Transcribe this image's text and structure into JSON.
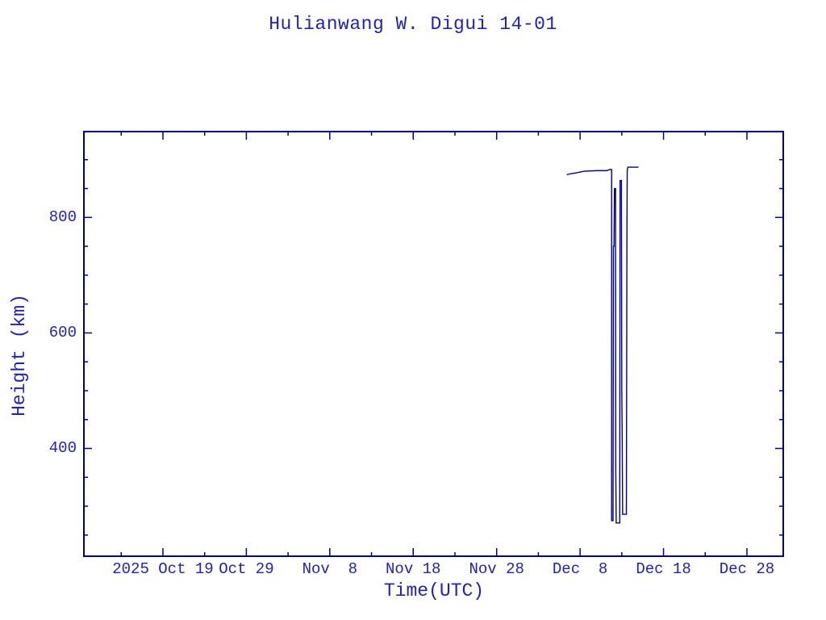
{
  "chart_data": {
    "type": "line",
    "title": "Hulianwang W. Digui 14-01",
    "xlabel": "Time(UTC)",
    "ylabel": "Height (km)",
    "grid": false,
    "legend": null,
    "colors": {
      "line": "#00008b",
      "frame": "#00008b",
      "text": "#2121bd",
      "background": "#ffffff"
    },
    "x_axis": {
      "epoch": "2025-10-09T00:00 UTC",
      "unit": "days since epoch",
      "domain_days": [
        0.43,
        84.45
      ],
      "major_ticks": [
        {
          "t": 10,
          "label": "2025 Oct 19"
        },
        {
          "t": 20,
          "label": "Oct 29"
        },
        {
          "t": 30,
          "label": "Nov  8"
        },
        {
          "t": 40,
          "label": "Nov 18"
        },
        {
          "t": 50,
          "label": "Nov 28"
        },
        {
          "t": 60,
          "label": "Dec  8"
        },
        {
          "t": 70,
          "label": "Dec 18"
        },
        {
          "t": 80,
          "label": "Dec 28"
        }
      ],
      "minor_ticks": [
        5,
        15,
        25,
        35,
        45,
        55,
        65,
        75
      ]
    },
    "y_axis": {
      "unit": "km",
      "domain_km": [
        212,
        950
      ],
      "major_ticks": [
        {
          "v": 400,
          "label": "400"
        },
        {
          "v": 600,
          "label": "600"
        },
        {
          "v": 800,
          "label": "800"
        }
      ],
      "minor_ticks": [
        250,
        300,
        350,
        450,
        500,
        550,
        650,
        700,
        750,
        850,
        900
      ]
    },
    "series": [
      {
        "name": "height-km",
        "color": "#00008b",
        "points_t_km": [
          [
            58.4,
            874
          ],
          [
            59.0,
            876
          ],
          [
            59.5,
            877
          ],
          [
            60.5,
            880
          ],
          [
            62.0,
            881
          ],
          [
            63.2,
            881
          ],
          [
            63.55,
            883
          ],
          [
            63.78,
            883
          ],
          [
            63.78,
            275
          ],
          [
            63.95,
            275
          ],
          [
            64.0,
            750
          ],
          [
            64.07,
            750
          ],
          [
            64.12,
            850
          ],
          [
            64.25,
            850
          ],
          [
            64.28,
            366
          ],
          [
            64.33,
            271
          ],
          [
            64.75,
            271
          ],
          [
            64.8,
            864
          ],
          [
            64.95,
            864
          ],
          [
            65.0,
            500
          ],
          [
            65.05,
            420
          ],
          [
            65.1,
            286
          ],
          [
            65.55,
            286
          ],
          [
            65.62,
            779
          ],
          [
            65.65,
            880
          ],
          [
            65.72,
            887
          ],
          [
            67.0,
            887
          ]
        ]
      }
    ]
  }
}
